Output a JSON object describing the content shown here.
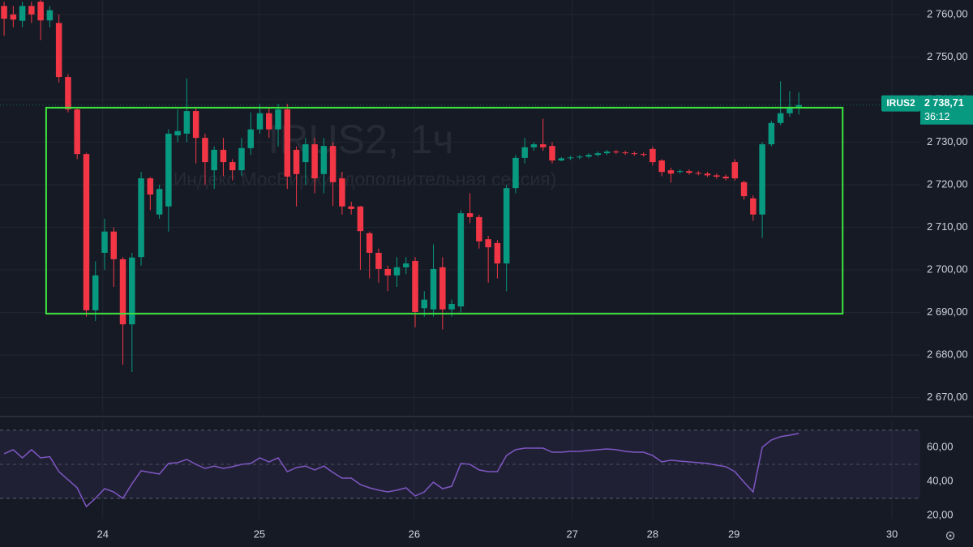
{
  "chart_data": {
    "type": "candlestick",
    "watermark": "IRUS2, 1ч",
    "subtitle": "Индекс МосБиржи (дополнительная сессия)",
    "ticker": "IRUS2",
    "countdown": "36:12",
    "last_price": {
      "value": 2738.71,
      "label": "2 738,71"
    },
    "up_color": "#089981",
    "down_color": "#f23645",
    "grid": true,
    "xlim": [
      -0.45,
      100.3
    ],
    "xticks": [
      {
        "value": 10.8,
        "label": "24"
      },
      {
        "value": 27.95,
        "label": "25"
      },
      {
        "value": 44.9,
        "label": "26"
      },
      {
        "value": 62.2,
        "label": "27"
      },
      {
        "value": 71.0,
        "label": "28"
      },
      {
        "value": 79.9,
        "label": "29"
      },
      {
        "value": 97.2,
        "label": "30"
      }
    ],
    "ylim": [
      2666.3,
      2763.4
    ],
    "yticks": [
      {
        "value": 2670,
        "label": "2 670,00"
      },
      {
        "value": 2680,
        "label": "2 680,00"
      },
      {
        "value": 2690,
        "label": "2 690,00"
      },
      {
        "value": 2700,
        "label": "2 700,00"
      },
      {
        "value": 2710,
        "label": "2 710,00"
      },
      {
        "value": 2720,
        "label": "2 720,00"
      },
      {
        "value": 2730,
        "label": "2 730,00"
      },
      {
        "value": 2740,
        "label": "2 740,00"
      },
      {
        "value": 2750,
        "label": "2 750,00"
      },
      {
        "value": 2760,
        "label": "2 760,00"
      }
    ],
    "open": [
      2762,
      2760,
      2758.5,
      2762,
      2763,
      2758.6,
      2758,
      2745.3,
      2737.7,
      2727.2,
      2690.5,
      2704,
      2709,
      2702.5,
      2687.2,
      2703,
      2721.5,
      2713,
      2714.9,
      2731.6,
      2732,
      2737.3,
      2731,
      2723.4,
      2728.2,
      2725.3,
      2723.4,
      2728.6,
      2733,
      2736.8,
      2733,
      2737.7,
      2728.2,
      2725.3,
      2729.5,
      2722.5,
      2729.1,
      2721.5,
      2714.9,
      2714.9,
      2708.6,
      2704,
      2700.2,
      2698.7,
      2700.6,
      2702.1,
      2691,
      2690.7,
      2700.6,
      2690.7,
      2691.4,
      2713.3,
      2712.4,
      2707.2,
      2706.3,
      2701.5,
      2719.2,
      2726.3,
      2728.8,
      2729.5,
      2729.1,
      2725.7,
      2726.2,
      2726.4,
      2726.6,
      2727,
      2727.4,
      2727.8,
      2727.6,
      2727.4,
      2727.2,
      2728.4,
      2725.7,
      2723.4,
      2723,
      2723.2,
      2722.8,
      2722.6,
      2722.2,
      2721.9,
      2725.3,
      2720.6,
      2716.8,
      2713,
      2729.5,
      2734.5,
      2736.8,
      2738.3
    ],
    "high": [
      2763,
      2762,
      2763,
      2763,
      2763.4,
      2762,
      2760,
      2746,
      2738,
      2727.5,
      2702,
      2712,
      2710,
      2703,
      2704,
      2723,
      2721.8,
      2720,
      2733,
      2737.7,
      2745,
      2738,
      2732,
      2729,
      2731,
      2726,
      2731,
      2737,
      2739,
      2738,
      2739,
      2739,
      2729,
      2731,
      2731,
      2731,
      2730,
      2723,
      2716,
      2715,
      2709,
      2705,
      2701,
      2703,
      2703,
      2703,
      2695,
      2706,
      2703,
      2693,
      2714,
      2718,
      2713,
      2708,
      2707,
      2720,
      2727,
      2731,
      2730,
      2735.5,
      2730,
      2726.5,
      2726.8,
      2727,
      2727.4,
      2727.8,
      2728.2,
      2728.2,
      2728,
      2727.8,
      2727.6,
      2729,
      2726,
      2724,
      2723.6,
      2723.6,
      2723.2,
      2723,
      2722.6,
      2722.4,
      2726,
      2721,
      2717.5,
      2730,
      2735,
      2744.3,
      2742,
      2741.7
    ],
    "low": [
      2755,
      2757,
      2757,
      2758,
      2754,
      2757,
      2744,
      2737,
      2726,
      2689,
      2688,
      2700,
      2696,
      2677.7,
      2676,
      2701,
      2714,
      2712,
      2709,
      2730,
      2730,
      2725,
      2720,
      2719,
      2722,
      2721,
      2722,
      2727,
      2732,
      2731,
      2729,
      2719,
      2714.9,
      2720,
      2718,
      2718,
      2715,
      2713,
      2713,
      2700,
      2698,
      2697,
      2695,
      2696,
      2699,
      2686.5,
      2689,
      2689,
      2686,
      2689,
      2690,
      2711,
      2705,
      2697,
      2698,
      2695,
      2718,
      2725,
      2728,
      2728,
      2725,
      2725.5,
      2725.8,
      2726,
      2726.2,
      2726.6,
      2727,
      2727.2,
      2727,
      2726.8,
      2726.6,
      2724.5,
      2722,
      2720.5,
      2722.6,
      2722.4,
      2722.2,
      2721.8,
      2721.4,
      2721,
      2721,
      2716.5,
      2711.5,
      2707.5,
      2729,
      2734,
      2736,
      2736.5
    ],
    "close": [
      2759,
      2758.8,
      2762,
      2760,
      2758.6,
      2761,
      2745.3,
      2737.7,
      2727.2,
      2690.5,
      2698.7,
      2709,
      2702.5,
      2687.2,
      2702.9,
      2721.5,
      2717.7,
      2719,
      2732,
      2732.6,
      2737.3,
      2731,
      2725.3,
      2728.2,
      2725.3,
      2723.4,
      2728.6,
      2733,
      2736.8,
      2733,
      2737.7,
      2721.9,
      2722.5,
      2729.5,
      2721.5,
      2729.1,
      2720.6,
      2714.9,
      2714.3,
      2709.1,
      2704,
      2700.2,
      2698.7,
      2700.6,
      2701.5,
      2690.1,
      2693,
      2700.2,
      2690.7,
      2692,
      2713.3,
      2712.4,
      2706.7,
      2705.3,
      2701.5,
      2719.2,
      2726.3,
      2728.8,
      2729.5,
      2728.8,
      2725.7,
      2726.2,
      2726.4,
      2726.6,
      2727,
      2727.4,
      2727.8,
      2727.6,
      2727.4,
      2727.2,
      2727,
      2725.3,
      2723,
      2722.6,
      2723.2,
      2722.8,
      2722.6,
      2722.2,
      2721.9,
      2721.5,
      2721.5,
      2717.3,
      2713,
      2729.5,
      2734.5,
      2736.8,
      2738.3,
      2738.71
    ],
    "annotation_box": {
      "x": [
        4.6,
        91.8
      ],
      "y": [
        2689.7,
        2738.1
      ],
      "color": "#3ee63e"
    },
    "rsi": {
      "color": "#7e57c2",
      "ylim": [
        18.1,
        75.2
      ],
      "yticks": [
        {
          "value": 20,
          "label": "20,00"
        },
        {
          "value": 40,
          "label": "40,00"
        },
        {
          "value": 60,
          "label": "60,00"
        }
      ],
      "bands": [
        30,
        70
      ],
      "midline": 50,
      "values": [
        56.2,
        58.6,
        53.8,
        58.6,
        53.8,
        54.5,
        45.7,
        41,
        36.2,
        25.2,
        30,
        35.7,
        33.8,
        30,
        38.6,
        46.2,
        45.2,
        44.3,
        50.5,
        51,
        52.9,
        50,
        47.6,
        49,
        47.6,
        48.6,
        50,
        50.5,
        53.8,
        51.4,
        53.8,
        45.7,
        48.1,
        49,
        46.7,
        49,
        45.2,
        41.9,
        41.9,
        38.1,
        36.2,
        34.8,
        33.8,
        34.8,
        36.2,
        31.4,
        33.8,
        39.5,
        35.7,
        37.1,
        50.5,
        50,
        46.7,
        45.7,
        45.7,
        55.2,
        58.6,
        59.5,
        59.5,
        59.5,
        57.1,
        57.1,
        57.6,
        57.6,
        58.1,
        58.6,
        59,
        58.6,
        57.6,
        57.1,
        57.1,
        55.2,
        51.4,
        52.4,
        51.9,
        51.4,
        51,
        50.5,
        49.5,
        48.6,
        45.7,
        39.5,
        33.8,
        60,
        64.3,
        66.2,
        67.1,
        68.1
      ]
    }
  }
}
